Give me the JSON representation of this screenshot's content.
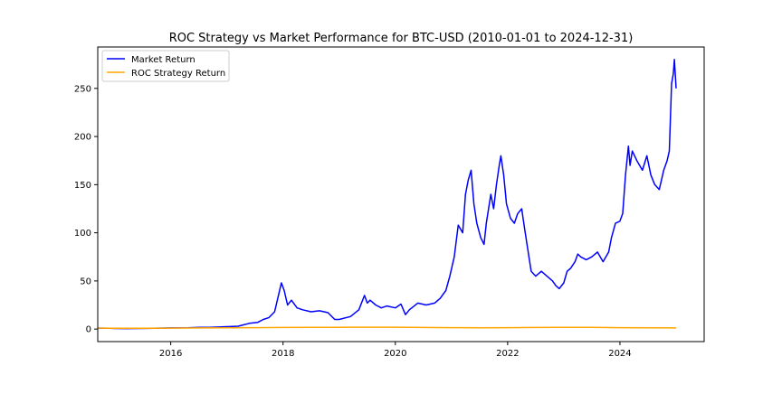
{
  "chart_data": {
    "type": "line",
    "title": "ROC Strategy vs Market Performance for BTC-USD (2010-01-01 to 2024-12-31)",
    "xlabel": "",
    "ylabel": "",
    "xlim": [
      2014.7,
      2025.5
    ],
    "ylim": [
      -13,
      293
    ],
    "x_ticks": [
      2016,
      2018,
      2020,
      2022,
      2024
    ],
    "x_tick_labels": [
      "2016",
      "2018",
      "2020",
      "2022",
      "2024"
    ],
    "y_ticks": [
      0,
      50,
      100,
      150,
      200,
      250
    ],
    "y_tick_labels": [
      "0",
      "50",
      "100",
      "150",
      "200",
      "250"
    ],
    "grid": false,
    "legend_position": "upper-left",
    "series": [
      {
        "name": "Market Return",
        "color": "#0000ff",
        "x": [
          2014.71,
          2014.9,
          2015.05,
          2015.2,
          2015.4,
          2015.6,
          2015.8,
          2016.0,
          2016.3,
          2016.5,
          2016.7,
          2017.0,
          2017.2,
          2017.4,
          2017.55,
          2017.65,
          2017.75,
          2017.85,
          2017.93,
          2017.97,
          2018.02,
          2018.08,
          2018.15,
          2018.25,
          2018.35,
          2018.5,
          2018.65,
          2018.8,
          2018.92,
          2019.0,
          2019.2,
          2019.35,
          2019.45,
          2019.5,
          2019.55,
          2019.65,
          2019.75,
          2019.85,
          2020.0,
          2020.1,
          2020.18,
          2020.25,
          2020.4,
          2020.55,
          2020.7,
          2020.8,
          2020.9,
          2020.97,
          2021.05,
          2021.12,
          2021.2,
          2021.25,
          2021.3,
          2021.35,
          2021.4,
          2021.45,
          2021.52,
          2021.58,
          2021.62,
          2021.7,
          2021.75,
          2021.8,
          2021.85,
          2021.88,
          2021.93,
          2021.98,
          2022.05,
          2022.12,
          2022.18,
          2022.25,
          2022.3,
          2022.38,
          2022.42,
          2022.5,
          2022.6,
          2022.7,
          2022.8,
          2022.86,
          2022.92,
          2023.0,
          2023.06,
          2023.12,
          2023.2,
          2023.25,
          2023.3,
          2023.4,
          2023.5,
          2023.6,
          2023.7,
          2023.8,
          2023.85,
          2023.92,
          2024.0,
          2024.05,
          2024.1,
          2024.15,
          2024.18,
          2024.22,
          2024.3,
          2024.4,
          2024.48,
          2024.55,
          2024.62,
          2024.7,
          2024.78,
          2024.84,
          2024.88,
          2024.92,
          2024.95,
          2024.97,
          2025.0
        ],
        "y": [
          1,
          0.8,
          0.6,
          0.5,
          0.6,
          0.7,
          1.0,
          1.2,
          1.3,
          1.7,
          1.8,
          2.5,
          3.0,
          6,
          7,
          10,
          12,
          18,
          38,
          48,
          40,
          25,
          30,
          22,
          20,
          18,
          19,
          17,
          10,
          10,
          13,
          20,
          35,
          27,
          30,
          25,
          22,
          24,
          22,
          26,
          15,
          20,
          27,
          25,
          27,
          32,
          40,
          55,
          75,
          108,
          100,
          140,
          155,
          165,
          130,
          110,
          95,
          88,
          110,
          140,
          125,
          150,
          170,
          180,
          160,
          130,
          115,
          110,
          120,
          125,
          105,
          75,
          60,
          55,
          60,
          55,
          50,
          45,
          42,
          48,
          60,
          63,
          70,
          78,
          75,
          72,
          75,
          80,
          70,
          80,
          95,
          110,
          112,
          120,
          160,
          190,
          170,
          185,
          175,
          165,
          180,
          160,
          150,
          145,
          165,
          175,
          185,
          255,
          265,
          280,
          250
        ]
      },
      {
        "name": "ROC Strategy Return",
        "color": "#ffa500",
        "x": [
          2014.71,
          2015.0,
          2015.5,
          2016.0,
          2016.5,
          2017.0,
          2017.5,
          2018.0,
          2018.5,
          2019.0,
          2019.5,
          2020.0,
          2020.5,
          2021.0,
          2021.5,
          2022.0,
          2022.5,
          2023.0,
          2023.5,
          2024.0,
          2024.5,
          2025.0
        ],
        "y": [
          1.0,
          0.9,
          0.8,
          1.0,
          1.2,
          1.4,
          1.5,
          1.6,
          1.7,
          1.8,
          1.9,
          1.9,
          1.6,
          1.5,
          1.4,
          1.5,
          1.6,
          1.8,
          1.7,
          1.5,
          1.3,
          1.2
        ]
      }
    ]
  }
}
